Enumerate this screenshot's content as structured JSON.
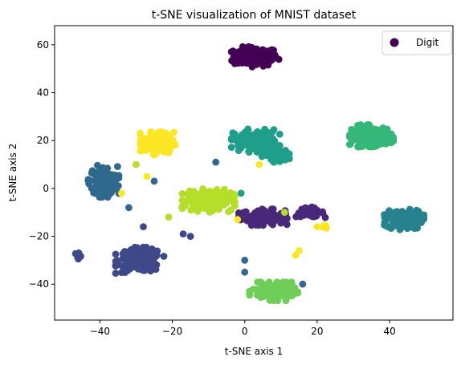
{
  "chart_data": {
    "type": "scatter",
    "title": "t-SNE visualization of MNIST dataset",
    "xlabel": "t-SNE axis 1",
    "ylabel": "t-SNE axis 2",
    "xlim": [
      -52.5,
      57.5
    ],
    "ylim": [
      -55,
      68
    ],
    "xticks": [
      -40,
      -20,
      0,
      20,
      40
    ],
    "yticks": [
      -40,
      -20,
      0,
      20,
      40,
      60
    ],
    "xtick_labels": [
      "−40",
      "−20",
      "0",
      "20",
      "40"
    ],
    "ytick_labels": [
      "−40",
      "−20",
      "0",
      "20",
      "40",
      "60"
    ],
    "grid": false,
    "legend": {
      "position": "top-right",
      "entries": [
        {
          "label": "Digit",
          "color": "#440154"
        }
      ]
    },
    "colormap": "viridis",
    "clusters": [
      {
        "color": "#440154",
        "center": [
          3,
          55
        ],
        "spread": [
          5.5,
          3.5
        ],
        "count": 170
      },
      {
        "color": "#482878",
        "center": [
          5,
          -12
        ],
        "spread": [
          5.5,
          2.8
        ],
        "count": 120
      },
      {
        "color": "#482878",
        "center": [
          18,
          -10
        ],
        "spread": [
          3.5,
          1.8
        ],
        "count": 50
      },
      {
        "color": "#3e4989",
        "center": [
          -29,
          -30
        ],
        "spread": [
          5.5,
          4.5
        ],
        "count": 170
      },
      {
        "color": "#3e4989",
        "center": [
          -46,
          -28
        ],
        "spread": [
          1.0,
          1.2
        ],
        "count": 10
      },
      {
        "color": "#31688e",
        "center": [
          -39,
          3
        ],
        "spread": [
          3.5,
          5.5
        ],
        "count": 170
      },
      {
        "color": "#26828e",
        "center": [
          44,
          -13
        ],
        "spread": [
          4.5,
          3.5
        ],
        "count": 150
      },
      {
        "color": "#1f9e89",
        "center": [
          3,
          20
        ],
        "spread": [
          5.5,
          4.0
        ],
        "count": 150
      },
      {
        "color": "#1f9e89",
        "center": [
          9,
          14
        ],
        "spread": [
          3.5,
          2.5
        ],
        "count": 60
      },
      {
        "color": "#35b779",
        "center": [
          35,
          22
        ],
        "spread": [
          5.0,
          3.8
        ],
        "count": 170
      },
      {
        "color": "#6ece58",
        "center": [
          8,
          -43
        ],
        "spread": [
          5.5,
          3.2
        ],
        "count": 160
      },
      {
        "color": "#b5de2b",
        "center": [
          -10,
          -5
        ],
        "spread": [
          6.0,
          4.0
        ],
        "count": 170
      },
      {
        "color": "#fde725",
        "center": [
          -24,
          19
        ],
        "spread": [
          4.0,
          4.0
        ],
        "count": 150
      },
      {
        "color": "#fde725",
        "center": [
          22,
          -16
        ],
        "spread": [
          0.8,
          1.0
        ],
        "count": 8
      }
    ],
    "outliers": [
      {
        "x": -8,
        "y": 11,
        "color": "#31688e"
      },
      {
        "x": -27,
        "y": 5,
        "color": "#fde725"
      },
      {
        "x": 0,
        "y": -30,
        "color": "#31688e"
      },
      {
        "x": 0,
        "y": -35,
        "color": "#31688e"
      },
      {
        "x": 16,
        "y": -40,
        "color": "#31688e"
      },
      {
        "x": 15,
        "y": -26,
        "color": "#fde725"
      },
      {
        "x": 14,
        "y": -28,
        "color": "#fde725"
      },
      {
        "x": 4,
        "y": 10,
        "color": "#fde725"
      },
      {
        "x": -30,
        "y": 10,
        "color": "#b5de2b"
      },
      {
        "x": -21,
        "y": -12,
        "color": "#b5de2b"
      },
      {
        "x": -1,
        "y": -2,
        "color": "#1f9e89"
      },
      {
        "x": -25,
        "y": 3,
        "color": "#31688e"
      },
      {
        "x": -34,
        "y": -2,
        "color": "#fde725"
      },
      {
        "x": -32,
        "y": -8,
        "color": "#31688e"
      },
      {
        "x": -28,
        "y": -16,
        "color": "#3e4989"
      },
      {
        "x": -2,
        "y": -13,
        "color": "#fde725"
      },
      {
        "x": 20,
        "y": -16,
        "color": "#fde725"
      },
      {
        "x": -17,
        "y": -19,
        "color": "#3e4989"
      },
      {
        "x": -15,
        "y": -20,
        "color": "#3e4989"
      },
      {
        "x": 11,
        "y": -10,
        "color": "#b5de2b"
      }
    ]
  }
}
